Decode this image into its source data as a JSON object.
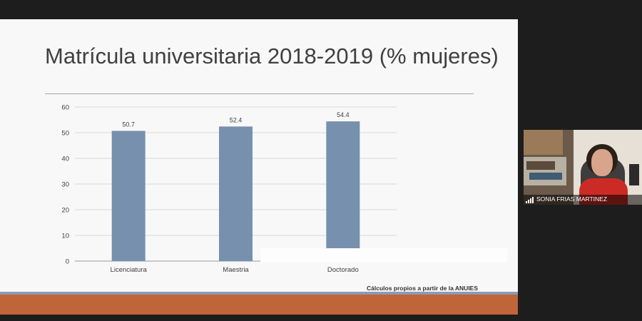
{
  "slide": {
    "title": "Matrícula universitaria 2018-2019 (% mujeres)",
    "source_note": "Cálculos propios a partir de la ANUIES",
    "band_color": "#c0643a"
  },
  "chart_data": {
    "type": "bar",
    "title": "",
    "xlabel": "",
    "ylabel": "",
    "categories": [
      "Licenciatura",
      "Maestria",
      "Doctorado"
    ],
    "values": [
      50.7,
      52.4,
      54.4
    ],
    "ylim": [
      0,
      60
    ],
    "yticks": [
      0,
      10,
      20,
      30,
      40,
      50,
      60
    ],
    "grid": true,
    "bar_color": "#7790ae"
  },
  "video_tile": {
    "participant_name": "SONIA FRIAS MARTINEZ"
  }
}
